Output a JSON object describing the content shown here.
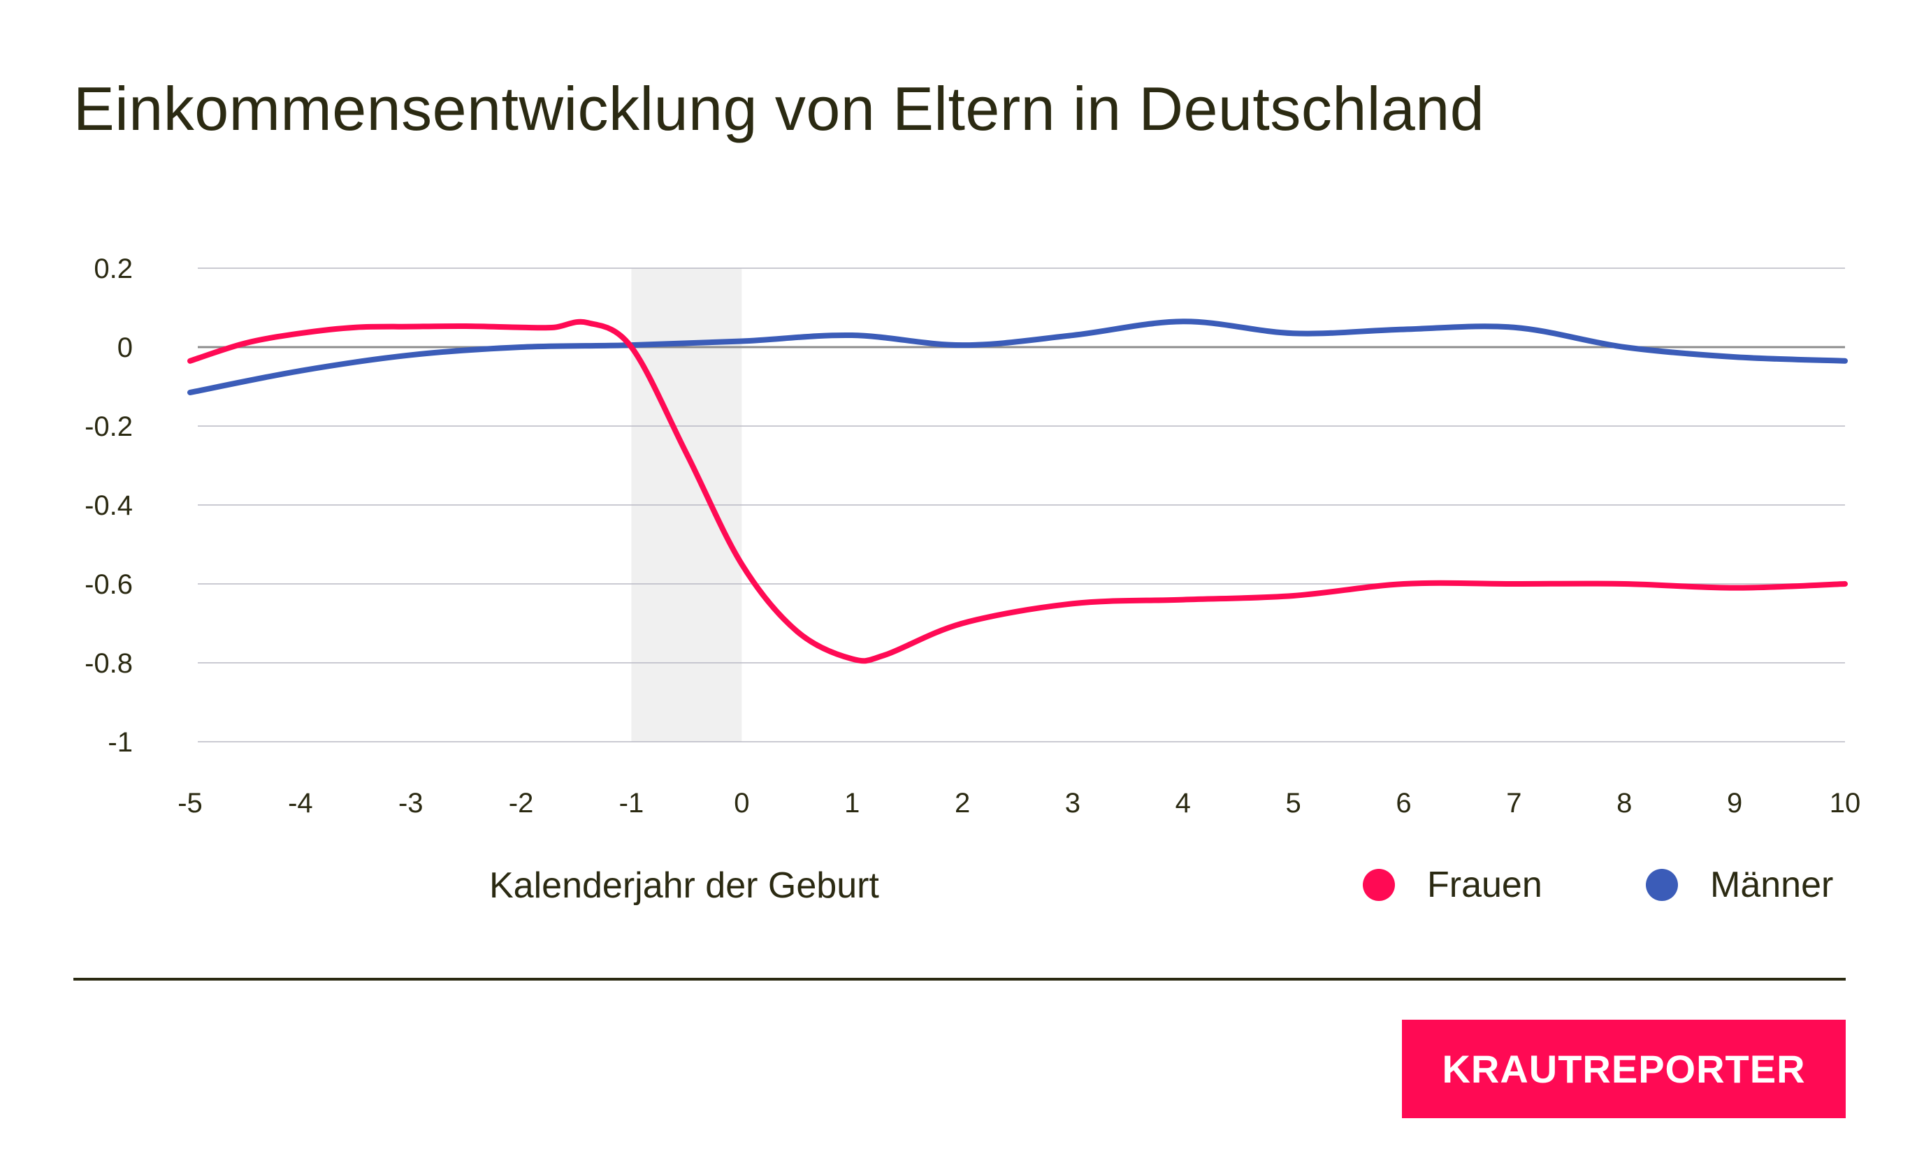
{
  "title": "Einkommensentwicklung von Eltern in Deutschland",
  "brand_label": "KRAUTREPORTER",
  "colors": {
    "frauen": "#ff0a54",
    "maenner": "#3b5cb8",
    "shade": "#f0f0f0",
    "grid": "#b8b8c4",
    "zero": "#8c8c8c",
    "text": "#2b2a12"
  },
  "chart_data": {
    "type": "line",
    "title": "Einkommensentwicklung von Eltern in Deutschland",
    "xlabel": "Kalenderjahr der Geburt",
    "ylabel": "",
    "x": [
      -5,
      -4,
      -3,
      -2,
      -1,
      0,
      1,
      2,
      3,
      4,
      5,
      6,
      7,
      8,
      9,
      10
    ],
    "x_tick_labels": [
      "-5",
      "-4",
      "-3",
      "-2",
      "-1",
      "0",
      "1",
      "2",
      "3",
      "4",
      "5",
      "6",
      "7",
      "8",
      "9",
      "10"
    ],
    "xlim": [
      -5,
      10
    ],
    "ylim": [
      -1,
      0.2
    ],
    "y_ticks": [
      0.2,
      0,
      -0.2,
      -0.4,
      -0.6,
      -0.8,
      -1
    ],
    "y_tick_labels": [
      "0.2",
      "0",
      "-0.2",
      "-0.4",
      "-0.6",
      "-0.8",
      "-1"
    ],
    "highlight_band": [
      -1,
      0
    ],
    "grid": true,
    "legend_position": "bottom-right",
    "series": [
      {
        "name": "Frauen",
        "x": [
          -5,
          -4.5,
          -4,
          -3.5,
          -3,
          -2.5,
          -2,
          -1.7,
          -1.4,
          -1.0,
          -0.5,
          0,
          0.5,
          1,
          1.3,
          2,
          3,
          4,
          5,
          6,
          7,
          8,
          9,
          10
        ],
        "values": [
          -0.035,
          0.01,
          0.035,
          0.05,
          0.052,
          0.053,
          0.05,
          0.05,
          0.062,
          0.0,
          -0.27,
          -0.55,
          -0.72,
          -0.79,
          -0.78,
          -0.7,
          -0.65,
          -0.64,
          -0.63,
          -0.6,
          -0.6,
          -0.6,
          -0.61,
          -0.6
        ]
      },
      {
        "name": "Männer",
        "x": [
          -5,
          -4,
          -3,
          -2,
          -1,
          0,
          1,
          2,
          3,
          4,
          5,
          6,
          7,
          8,
          9,
          10
        ],
        "values": [
          -0.115,
          -0.06,
          -0.02,
          0.0,
          0.005,
          0.015,
          0.03,
          0.005,
          0.03,
          0.065,
          0.035,
          0.045,
          0.05,
          0.0,
          -0.025,
          -0.035
        ]
      }
    ]
  }
}
